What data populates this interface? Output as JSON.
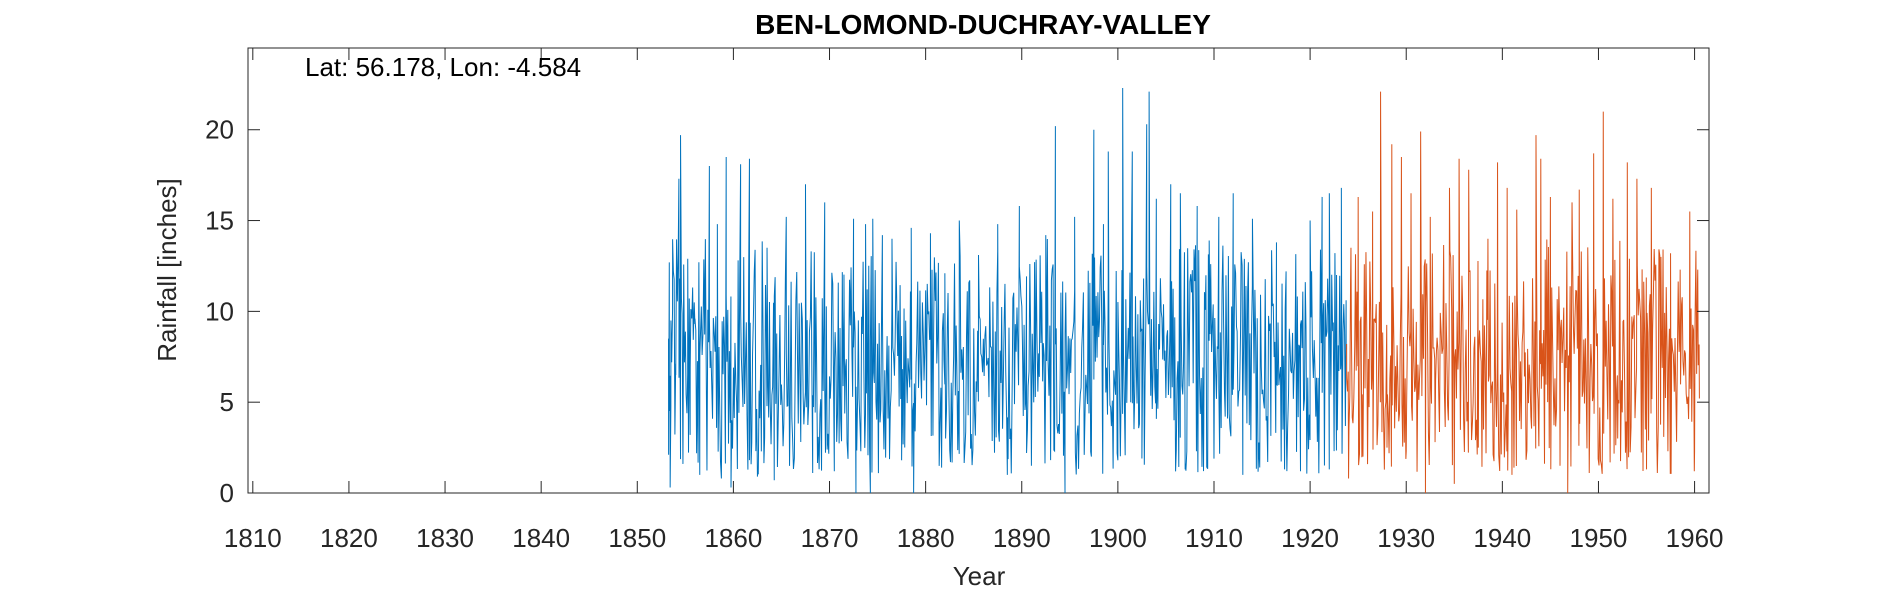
{
  "chart_data": {
    "type": "line",
    "title": "BEN-LOMOND-DUCHRAY-VALLEY",
    "annotation": "Lat: 56.178, Lon: -4.584",
    "xlabel": "Year",
    "ylabel": "Rainfall [inches]",
    "xlim": [
      1809.5,
      1961.5
    ],
    "ylim": [
      0,
      24.5
    ],
    "x_ticks": [
      1810,
      1820,
      1830,
      1840,
      1850,
      1860,
      1870,
      1880,
      1890,
      1900,
      1910,
      1920,
      1930,
      1940,
      1950,
      1960
    ],
    "y_ticks": [
      0,
      5,
      10,
      15,
      20
    ],
    "grid": false,
    "box": true,
    "series": [
      {
        "color": "#0072BD",
        "x_start": 1853.25,
        "x_end": 1923.8,
        "resolution": "monthly",
        "points": [
          [
            1853.25,
            8.5
          ],
          [
            1853.33,
            12.7
          ],
          [
            1853.42,
            0.3
          ],
          [
            1853.5,
            9.5
          ],
          [
            1853.58,
            7.2
          ],
          [
            1853.67,
            10.1
          ],
          [
            1854.0,
            6.5
          ],
          [
            1854.33,
            17.3
          ],
          [
            1854.5,
            19.7
          ],
          [
            1854.75,
            1.6
          ],
          [
            1855.25,
            12.9
          ],
          [
            1855.5,
            3.2
          ],
          [
            1856.0,
            9.6
          ],
          [
            1856.5,
            1.0
          ],
          [
            1857.5,
            18.0
          ],
          [
            1858.33,
            14.8
          ],
          [
            1858.75,
            0.8
          ],
          [
            1859.25,
            18.5
          ],
          [
            1859.75,
            0.3
          ],
          [
            1860.75,
            18.1
          ],
          [
            1861.67,
            18.4
          ],
          [
            1862.5,
            0.9
          ],
          [
            1863.5,
            13.5
          ],
          [
            1864.25,
            0.7
          ],
          [
            1865.5,
            15.2
          ],
          [
            1867.5,
            17.0
          ],
          [
            1868.25,
            1.1
          ],
          [
            1869.5,
            16.0
          ],
          [
            1870.5,
            1.2
          ],
          [
            1871.5,
            10.1
          ],
          [
            1872.5,
            15.1
          ],
          [
            1872.75,
            0.0
          ],
          [
            1873.75,
            14.8
          ],
          [
            1874.25,
            0.0
          ],
          [
            1874.5,
            15.1
          ],
          [
            1875.5,
            14.2
          ],
          [
            1876.5,
            14.0
          ],
          [
            1877.5,
            1.8
          ],
          [
            1878.5,
            14.6
          ],
          [
            1878.75,
            0.0
          ],
          [
            1880.5,
            14.3
          ],
          [
            1882.0,
            12.1
          ],
          [
            1883.5,
            15.0
          ],
          [
            1885.5,
            13.1
          ],
          [
            1887.5,
            14.8
          ],
          [
            1888.5,
            1.0
          ],
          [
            1889.75,
            15.8
          ],
          [
            1890.5,
            2.2
          ],
          [
            1892.5,
            14.2
          ],
          [
            1893.5,
            20.2
          ],
          [
            1894.5,
            0.0
          ],
          [
            1895.5,
            15.2
          ],
          [
            1896.5,
            2.1
          ],
          [
            1897.5,
            20.0
          ],
          [
            1898.5,
            14.8
          ],
          [
            1899.0,
            18.8
          ],
          [
            1900.0,
            1.8
          ],
          [
            1900.5,
            22.3
          ],
          [
            1901.5,
            18.8
          ],
          [
            1902.5,
            1.9
          ],
          [
            1903.0,
            20.3
          ],
          [
            1903.25,
            22.1
          ],
          [
            1904.0,
            16.2
          ],
          [
            1905.5,
            17.0
          ],
          [
            1906.5,
            16.5
          ],
          [
            1907.0,
            1.3
          ],
          [
            1908.25,
            15.8
          ],
          [
            1909.5,
            13.9
          ],
          [
            1910.5,
            15.2
          ],
          [
            1912.0,
            16.5
          ],
          [
            1913.0,
            1.0
          ],
          [
            1914.0,
            15.1
          ],
          [
            1916.5,
            13.8
          ],
          [
            1917.5,
            12.2
          ],
          [
            1919.0,
            1.2
          ],
          [
            1920.0,
            15.0
          ],
          [
            1921.25,
            16.3
          ],
          [
            1922.0,
            16.5
          ],
          [
            1922.75,
            12.0
          ],
          [
            1923.25,
            16.8
          ],
          [
            1923.75,
            7.9
          ]
        ]
      },
      {
        "color": "#D95319",
        "x_start": 1923.8,
        "x_end": 1960.5,
        "resolution": "monthly",
        "points": [
          [
            1923.8,
            8.2
          ],
          [
            1924.0,
            0.8
          ],
          [
            1924.25,
            13.5
          ],
          [
            1925.0,
            16.3
          ],
          [
            1925.5,
            2.0
          ],
          [
            1926.5,
            15.5
          ],
          [
            1927.33,
            22.1
          ],
          [
            1928.0,
            2.5
          ],
          [
            1928.5,
            19.2
          ],
          [
            1929.5,
            18.5
          ],
          [
            1930.0,
            2.3
          ],
          [
            1930.5,
            16.5
          ],
          [
            1931.5,
            19.9
          ],
          [
            1932.0,
            0.0
          ],
          [
            1932.5,
            15.2
          ],
          [
            1933.0,
            2.8
          ],
          [
            1934.5,
            16.8
          ],
          [
            1935.0,
            0.5
          ],
          [
            1935.5,
            18.4
          ],
          [
            1936.5,
            17.8
          ],
          [
            1937.5,
            2.5
          ],
          [
            1938.5,
            14.0
          ],
          [
            1939.5,
            18.2
          ],
          [
            1940.5,
            16.8
          ],
          [
            1941.0,
            1.0
          ],
          [
            1941.5,
            15.6
          ],
          [
            1943.5,
            19.7
          ],
          [
            1944.0,
            18.4
          ],
          [
            1945.0,
            16.3
          ],
          [
            1946.0,
            1.5
          ],
          [
            1946.8,
            0.0
          ],
          [
            1947.25,
            16.0
          ],
          [
            1948.0,
            16.7
          ],
          [
            1949.5,
            18.7
          ],
          [
            1950.5,
            21.0
          ],
          [
            1951.5,
            16.2
          ],
          [
            1952.0,
            3.0
          ],
          [
            1953.0,
            18.2
          ],
          [
            1954.0,
            17.3
          ],
          [
            1955.0,
            1.3
          ],
          [
            1955.5,
            16.8
          ],
          [
            1956.5,
            13.0
          ],
          [
            1957.5,
            13.2
          ],
          [
            1958.5,
            12.3
          ],
          [
            1959.5,
            15.5
          ],
          [
            1960.0,
            2.3
          ],
          [
            1960.33,
            12.3
          ],
          [
            1960.5,
            5.2
          ]
        ]
      }
    ]
  }
}
